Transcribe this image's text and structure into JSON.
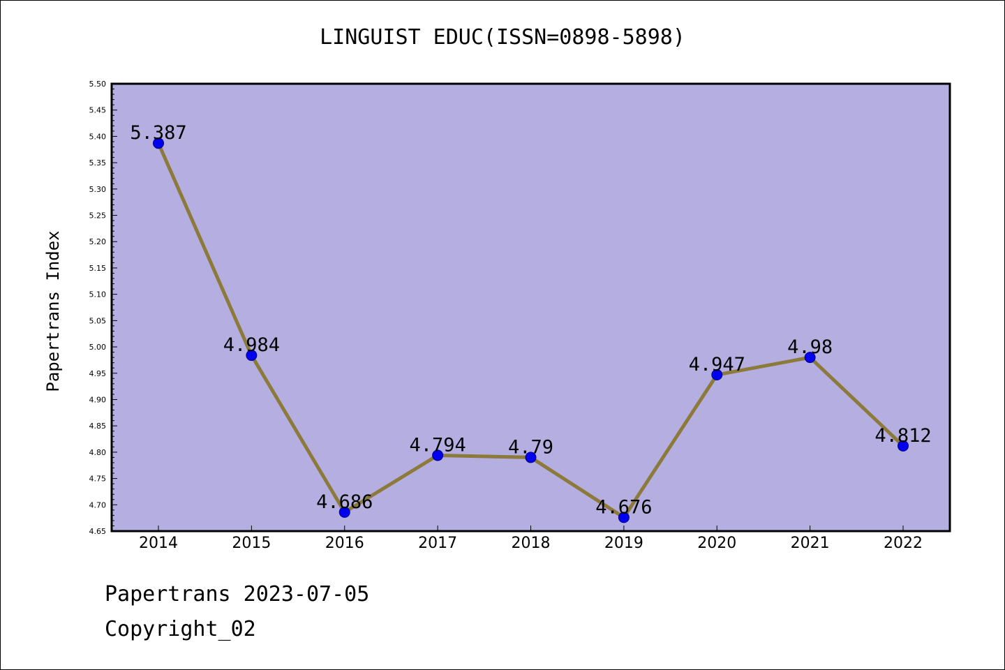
{
  "chart_data": {
    "type": "line",
    "title": "LINGUIST EDUC(ISSN=0898-5898)",
    "ylabel": "Papertrans Index",
    "xlabel": "",
    "categories": [
      "2014",
      "2015",
      "2016",
      "2017",
      "2018",
      "2019",
      "2020",
      "2021",
      "2022"
    ],
    "series": [
      {
        "values": [
          5.387,
          4.984,
          4.686,
          4.794,
          4.79,
          4.676,
          4.947,
          4.98,
          4.812
        ],
        "labels": [
          "5.387",
          "4.984",
          "4.686",
          "4.794",
          "4.79",
          "4.676",
          "4.947",
          "4.98",
          "4.812"
        ]
      }
    ],
    "ylim": [
      4.65,
      5.5
    ],
    "yticks": [
      "4.65",
      "4.70",
      "4.75",
      "4.80",
      "4.85",
      "4.90",
      "4.95",
      "5.00",
      "5.05",
      "5.10",
      "5.15",
      "5.20",
      "5.25",
      "5.30",
      "5.35",
      "5.40",
      "5.45",
      "5.50"
    ],
    "grid": false,
    "legend": "none",
    "colors": {
      "plot_background": "#b5aee1",
      "line": "#8b7a3a",
      "marker": "#0000ee"
    }
  },
  "footer": {
    "date_text": "Papertrans 2023-07-05",
    "copyright_text": "Copyright_02"
  }
}
